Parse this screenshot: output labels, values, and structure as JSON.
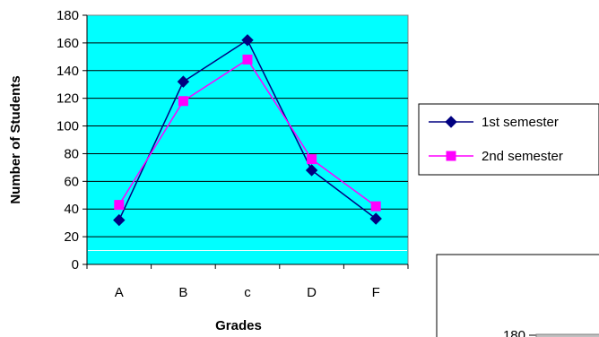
{
  "chart_data": [
    {
      "type": "line",
      "title": "",
      "xlabel": "Grades",
      "ylabel": "Number of Students",
      "categories": [
        "A",
        "B",
        "c",
        "D",
        "F"
      ],
      "ylim": [
        0,
        180
      ],
      "yticks": [
        0,
        20,
        40,
        60,
        80,
        100,
        120,
        140,
        160,
        180
      ],
      "grid": true,
      "plot_background": "#00FFFF",
      "legend_position": "right",
      "series": [
        {
          "name": "1st semester",
          "color": "#000080",
          "marker": "diamond",
          "values": [
            32,
            132,
            162,
            68,
            33
          ]
        },
        {
          "name": "2nd semester",
          "color": "#FF00FF",
          "marker": "square",
          "values": [
            43,
            118,
            148,
            76,
            42
          ]
        }
      ]
    },
    {
      "type": "line",
      "partial": true,
      "yticks_visible": [
        "180"
      ]
    }
  ]
}
